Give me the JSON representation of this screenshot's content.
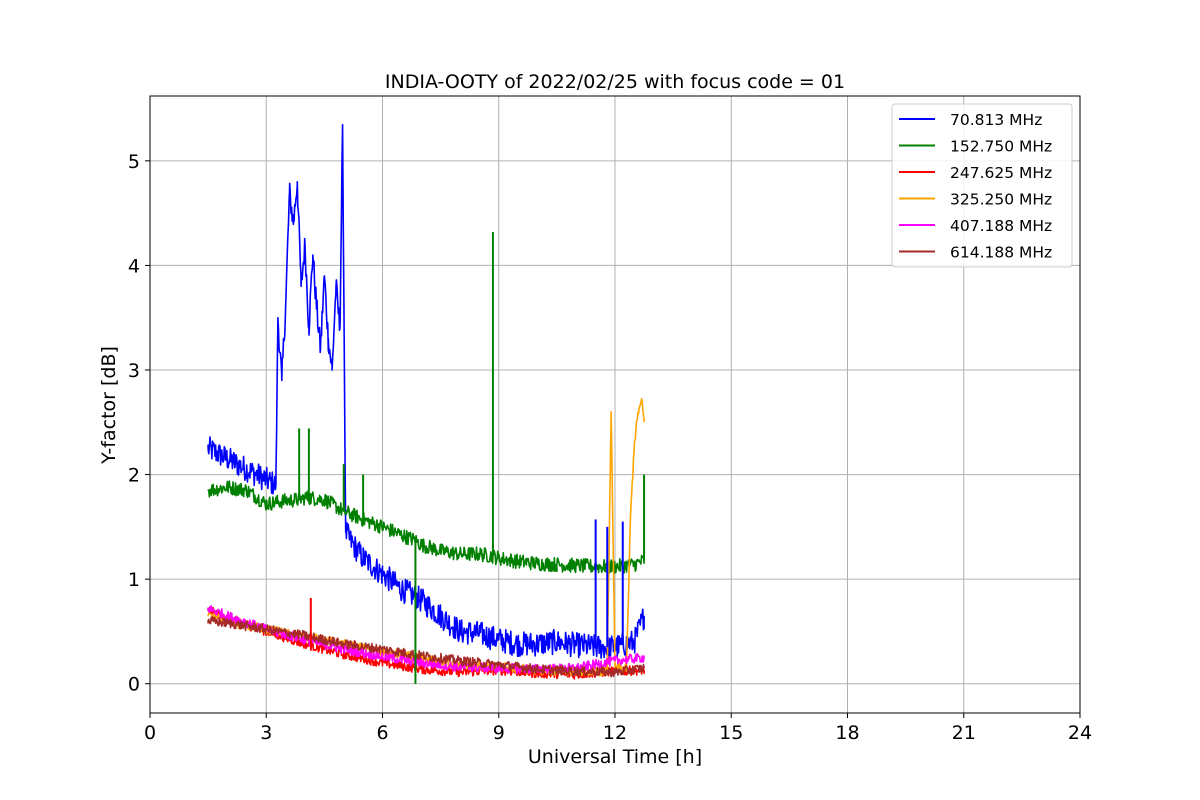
{
  "chart_data": {
    "type": "line",
    "title": "INDIA-OOTY of 2022/02/25 with focus code = 01",
    "xlabel": "Universal Time [h]",
    "ylabel": "Y-factor [dB]",
    "xlim": [
      0,
      24
    ],
    "ylim": [
      -0.28,
      5.62
    ],
    "xticks": [
      "0",
      "3",
      "6",
      "9",
      "12",
      "15",
      "18",
      "21",
      "24"
    ],
    "yticks": [
      "0",
      "1",
      "2",
      "3",
      "4",
      "5"
    ],
    "grid": true,
    "legend_position": "top-right",
    "series": [
      {
        "name": "70.813 MHz",
        "color": "#0000ff",
        "x": [
          1.5,
          2.0,
          2.5,
          3.0,
          3.25,
          3.3,
          3.4,
          3.5,
          3.6,
          3.7,
          3.8,
          3.9,
          4.0,
          4.1,
          4.2,
          4.3,
          4.4,
          4.5,
          4.6,
          4.7,
          4.8,
          4.9,
          4.97,
          5.05,
          5.2,
          5.5,
          6.0,
          6.5,
          7.0,
          7.5,
          8.0,
          8.5,
          9.0,
          9.5,
          10.0,
          10.5,
          11.0,
          11.5,
          12.0,
          12.5,
          12.75
        ],
        "y": [
          2.25,
          2.15,
          2.05,
          1.95,
          1.9,
          3.5,
          2.9,
          3.6,
          4.7,
          4.4,
          4.8,
          3.8,
          4.2,
          3.4,
          4.1,
          3.6,
          3.2,
          3.9,
          3.3,
          3.0,
          3.8,
          3.4,
          5.3,
          1.45,
          1.35,
          1.2,
          1.05,
          0.9,
          0.8,
          0.65,
          0.5,
          0.48,
          0.42,
          0.38,
          0.38,
          0.4,
          0.37,
          0.35,
          0.35,
          0.4,
          0.65
        ]
      },
      {
        "name": "152.750 MHz",
        "color": "#008000",
        "x": [
          1.5,
          2.0,
          2.5,
          3.0,
          3.5,
          3.85,
          4.0,
          4.1,
          4.5,
          5.0,
          5.5,
          6.0,
          6.5,
          6.85,
          7.0,
          7.5,
          8.0,
          8.5,
          8.85,
          9.0,
          9.5,
          10.0,
          10.5,
          11.0,
          11.5,
          12.0,
          12.5,
          12.75
        ],
        "y": [
          1.85,
          1.88,
          1.85,
          1.72,
          1.75,
          1.76,
          1.78,
          1.78,
          1.76,
          1.65,
          1.57,
          1.5,
          1.42,
          1.37,
          1.33,
          1.27,
          1.24,
          1.24,
          1.22,
          1.2,
          1.17,
          1.15,
          1.14,
          1.13,
          1.12,
          1.12,
          1.14,
          1.18
        ]
      },
      {
        "name": "247.625 MHz",
        "color": "#ff0000",
        "x": [
          1.5,
          2.0,
          3.0,
          4.0,
          5.0,
          6.0,
          7.0,
          8.0,
          9.0,
          10.0,
          11.0,
          12.0,
          12.75
        ],
        "y": [
          0.7,
          0.63,
          0.5,
          0.38,
          0.28,
          0.2,
          0.14,
          0.11,
          0.13,
          0.1,
          0.09,
          0.12,
          0.13
        ]
      },
      {
        "name": "325.250 MHz",
        "color": "#ffa500",
        "x": [
          1.5,
          2.0,
          3.0,
          4.0,
          5.0,
          6.0,
          7.0,
          8.0,
          9.0,
          10.0,
          11.0,
          11.8,
          11.9,
          12.0,
          12.3,
          12.4,
          12.5,
          12.6,
          12.7,
          12.75
        ],
        "y": [
          0.65,
          0.6,
          0.52,
          0.45,
          0.38,
          0.3,
          0.24,
          0.18,
          0.16,
          0.13,
          0.12,
          0.12,
          2.6,
          0.15,
          0.15,
          1.6,
          2.3,
          2.6,
          2.7,
          2.5
        ]
      },
      {
        "name": "407.188 MHz",
        "color": "#ff00ff",
        "x": [
          1.5,
          2.0,
          3.0,
          4.0,
          5.0,
          6.0,
          7.0,
          8.0,
          9.0,
          10.0,
          11.0,
          12.0,
          12.75
        ],
        "y": [
          0.72,
          0.65,
          0.52,
          0.42,
          0.33,
          0.26,
          0.2,
          0.16,
          0.15,
          0.14,
          0.15,
          0.22,
          0.25
        ]
      },
      {
        "name": "614.188 MHz",
        "color": "#a52a2a",
        "x": [
          1.5,
          2.0,
          3.0,
          4.0,
          5.0,
          6.0,
          7.0,
          8.0,
          9.0,
          10.0,
          11.0,
          12.0,
          12.75
        ],
        "y": [
          0.6,
          0.58,
          0.52,
          0.46,
          0.38,
          0.33,
          0.27,
          0.22,
          0.18,
          0.14,
          0.12,
          0.11,
          0.15
        ]
      }
    ]
  }
}
